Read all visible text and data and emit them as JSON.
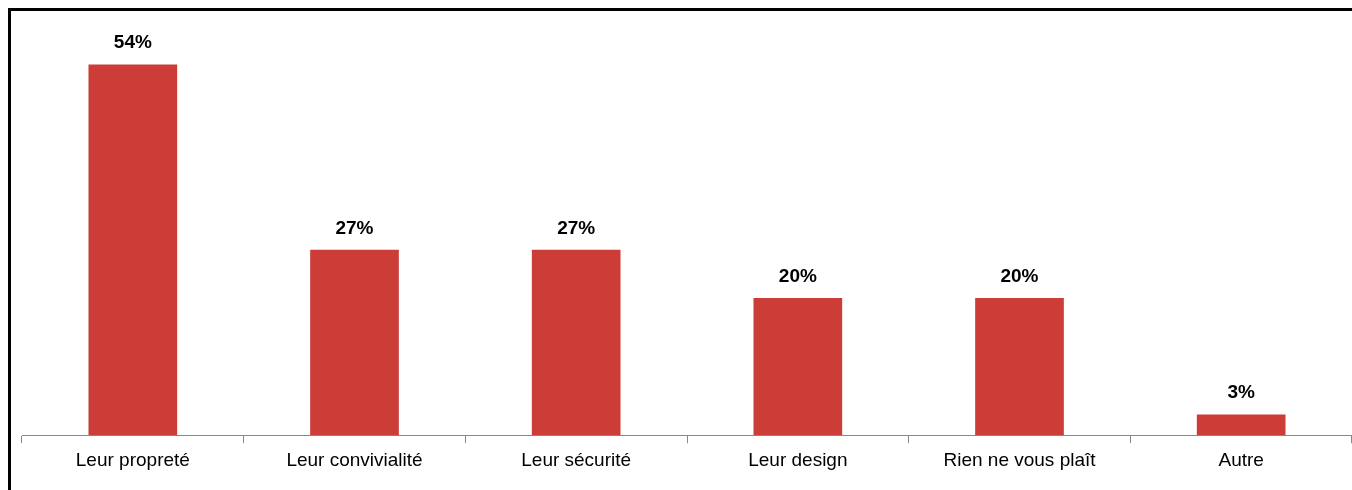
{
  "chart_data": {
    "type": "bar",
    "categories": [
      "Leur propreté",
      "Leur convivialité",
      "Leur sécurité",
      "Leur design",
      "Rien ne vous plaît",
      "Autre"
    ],
    "values": [
      54,
      27,
      27,
      20,
      20,
      3
    ],
    "value_labels": [
      "54%",
      "27%",
      "27%",
      "20%",
      "20%",
      "3%"
    ],
    "color": "#cc3d38",
    "grid": false,
    "legend": false
  }
}
